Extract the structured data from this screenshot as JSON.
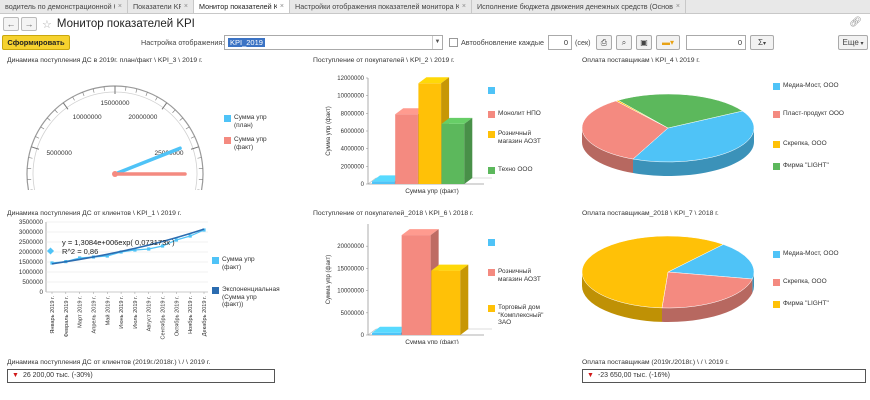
{
  "tabs": [
    {
      "label": "водитель по демонстрационной базе",
      "active": false
    },
    {
      "label": "Показатели KPI",
      "active": false
    },
    {
      "label": "Монитор показателей KPI",
      "active": true
    },
    {
      "label": "Настройки отображения показателей монитора KPI",
      "active": false
    },
    {
      "label": "Исполнение бюджета движения денежных средств (Основной)",
      "active": false
    }
  ],
  "header": {
    "title": "Монитор показателей KPI",
    "back_icon": "arrow-left-icon",
    "forward_icon": "arrow-right-icon",
    "star_icon": "star-icon",
    "link_icon": "link-icon"
  },
  "toolbar": {
    "generate_label": "Сформировать",
    "settings_label": "Настройка отображения:",
    "settings_value": "KPI_2019",
    "autoupdate_label": "Автообновление каждые",
    "autoupdate_value": "0",
    "sec_label": "(сек)",
    "number_value": "0",
    "sigma_label": "Σ",
    "more_label": "Еще"
  },
  "panels": {
    "p1": {
      "title": "Динамика поступления ДС в 2019г. план/факт \\ KPI_3 \\ 2019 г."
    },
    "p2": {
      "title": "Поступление от покупателей \\ KPI_2 \\ 2019 г."
    },
    "p3": {
      "title": "Оплата поставщикам \\ KPI_4 \\ 2019 г."
    },
    "p4": {
      "title": "Динамика поступления ДС от клиентов \\ KPI_1 \\ 2019 г."
    },
    "p5": {
      "title": "Поступление от покупателей_2018 \\ KPI_6 \\ 2018 г."
    },
    "p6": {
      "title": "Оплата поставщикам_2018 \\ KPI_7 \\ 2018 г."
    },
    "k1": {
      "title": "Динамика поступления ДС от клиентов (2019г./2018г.) \\ / \\ 2019 г.",
      "value": "26 200,00 тыс. (-30%)"
    },
    "k2": {
      "title": "Оплата поставщикам (2019г./2018г.) \\ / \\ 2019 г.",
      "value": "-23 650,00 тыс. (-16%)"
    }
  },
  "chart_data": [
    {
      "type": "gauge",
      "ticks": [
        "0",
        "5000000",
        "10000000",
        "15000000",
        "20000000",
        "25000000",
        "30000000"
      ],
      "range": [
        0,
        30000000
      ],
      "series": [
        {
          "name": "Сумма упр (план)",
          "value": 24500000,
          "color": "#4fc3f7"
        },
        {
          "name": "Сумма упр (факт)",
          "value": 27500000,
          "color": "#f48a80"
        }
      ]
    },
    {
      "type": "bar",
      "ylabel": "Сумма упр (факт)",
      "xlabel": "Сумма упр (факт)",
      "yticks": [
        "0",
        "2000000",
        "4000000",
        "6000000",
        "8000000",
        "10000000",
        "12000000"
      ],
      "ylim": [
        0,
        12000000
      ],
      "series": [
        {
          "name": "",
          "value": 300000,
          "color": "#4fc3f7"
        },
        {
          "name": "Монолит НПО",
          "value": 7900000,
          "color": "#f48a80"
        },
        {
          "name": "Розничный магазин АОЗТ",
          "value": 11400000,
          "color": "#ffc107"
        },
        {
          "name": "Техно ООО",
          "value": 6800000,
          "color": "#5cb85c"
        }
      ]
    },
    {
      "type": "pie",
      "slices": [
        {
          "name": "Медиа-Мост, ООО",
          "value": 40,
          "color": "#4fc3f7"
        },
        {
          "name": "Пласт-продукт ООО",
          "value": 33,
          "color": "#f48a80"
        },
        {
          "name": "Скрепка, ООО",
          "value": 0.5,
          "color": "#ffc107"
        },
        {
          "name": "Фирма \"LIGHT\"",
          "value": 26.5,
          "color": "#5cb85c"
        }
      ]
    },
    {
      "type": "line",
      "categories": [
        "Январь 2019 г.",
        "Февраль 2019 г.",
        "Март 2019 г.",
        "Апрель 2019 г.",
        "Май 2019 г.",
        "Июнь 2019 г.",
        "Июль 2019 г.",
        "Август 2019 г.",
        "Сентябрь 2019 г.",
        "Октябрь 2019 г.",
        "Ноябрь 2019 г.",
        "Декабрь 2019 г."
      ],
      "yticks": [
        "0",
        "500000",
        "1000000",
        "1500000",
        "2000000",
        "2500000",
        "3000000",
        "3500000"
      ],
      "ylim": [
        0,
        3500000
      ],
      "annotations": [
        "y = 1,3084e+006exp( 0,073173x )",
        "R^2 = 0,86"
      ],
      "series": [
        {
          "name": "Сумма упр (факт)",
          "color": "#4fc3f7",
          "values": [
            1450000,
            1520000,
            1700000,
            1750000,
            1800000,
            2000000,
            2100000,
            2150000,
            2300000,
            2600000,
            2800000,
            3100000
          ]
        },
        {
          "name": "Экспоненциальная (Сумма упр (факт))",
          "color": "#2b6cb0",
          "values": [
            1407000,
            1514000,
            1629000,
            1752000,
            1885000,
            2028000,
            2182000,
            2348000,
            2526000,
            2718000,
            2924000,
            3146000
          ]
        }
      ]
    },
    {
      "type": "bar",
      "ylabel": "Сумма упр (факт)",
      "xlabel": "Сумма упр (факт)",
      "yticks": [
        "0",
        "5000000",
        "10000000",
        "15000000",
        "20000000"
      ],
      "ylim": [
        0,
        25000000
      ],
      "series": [
        {
          "name": "",
          "value": 500000,
          "color": "#4fc3f7"
        },
        {
          "name": "Розничный магазин АОЗТ",
          "value": 22500000,
          "color": "#f48a80"
        },
        {
          "name": "Торговый дом \"Комплексный\" ЗАО",
          "value": 14500000,
          "color": "#ffc107"
        }
      ]
    },
    {
      "type": "pie",
      "slices": [
        {
          "name": "Медиа-Мост, ООО",
          "value": 17,
          "color": "#4fc3f7"
        },
        {
          "name": "Скрепка, ООО",
          "value": 23,
          "color": "#f48a80"
        },
        {
          "name": "Фирма \"LIGHT\"",
          "value": 60,
          "color": "#ffc107"
        }
      ]
    }
  ]
}
